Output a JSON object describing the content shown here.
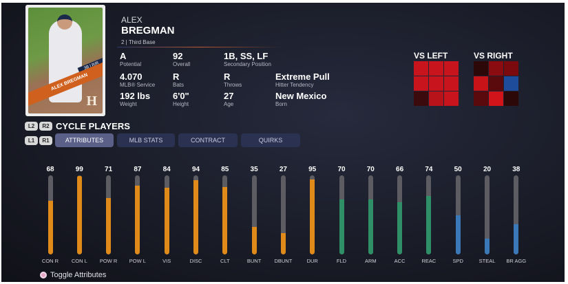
{
  "card": {
    "name": "ALEX BREGMAN",
    "position_badge": "3B | R/R",
    "logo": "H"
  },
  "player": {
    "first_name": "ALEX",
    "last_name": "BREGMAN",
    "subtitle": "2 | Third Base"
  },
  "info": [
    {
      "value": "A",
      "label": "Potential"
    },
    {
      "value": "92",
      "label": "Overall"
    },
    {
      "value": "1B, SS, LF",
      "label": "Secondary Position"
    },
    {
      "value": "4.070",
      "label": "MLB® Service"
    },
    {
      "value": "R",
      "label": "Bats"
    },
    {
      "value": "R",
      "label": "Throws"
    },
    {
      "value": "Extreme Pull",
      "label": "Hitter Tendency"
    },
    {
      "value": "192 lbs",
      "label": "Weight"
    },
    {
      "value": "6'0\"",
      "label": "Height"
    },
    {
      "value": "27",
      "label": "Age"
    },
    {
      "value": "New Mexico",
      "label": "Born"
    }
  ],
  "hot_zones": {
    "vs_left": {
      "title": "VS LEFT",
      "colors": [
        "#c8141c",
        "#c8141c",
        "#c8141c",
        "#c8141c",
        "#c8141c",
        "#c8141c",
        "#3a0a0c",
        "#b8121a",
        "#c8141c"
      ]
    },
    "vs_right": {
      "title": "VS RIGHT",
      "colors": [
        "#2c0809",
        "#8a0c10",
        "#7a0a0e",
        "#c81418",
        "#5a0a0c",
        "#1f4c9a",
        "#5a0a0c",
        "#d0141a",
        "#2c0809"
      ]
    }
  },
  "cycle": {
    "l2": "L2",
    "r2": "R2",
    "label": "CYCLE PLAYERS",
    "l1": "L1",
    "r1": "R1"
  },
  "tabs": [
    {
      "label": "ATTRIBUTES",
      "active": true
    },
    {
      "label": "MLB STATS"
    },
    {
      "label": "CONTRACT"
    },
    {
      "label": "QUIRKS"
    }
  ],
  "attribute_colors": {
    "hitting": "#e08a1a",
    "fielding": "#2f8f66",
    "running": "#3a78b8",
    "track": "#5c5c62"
  },
  "attributes": [
    {
      "label": "CON R",
      "value": 68,
      "group": "hitting"
    },
    {
      "label": "CON L",
      "value": 99,
      "group": "hitting"
    },
    {
      "label": "POW R",
      "value": 71,
      "group": "hitting"
    },
    {
      "label": "POW L",
      "value": 87,
      "group": "hitting"
    },
    {
      "label": "VIS",
      "value": 84,
      "group": "hitting"
    },
    {
      "label": "DISC",
      "value": 94,
      "group": "hitting"
    },
    {
      "label": "CLT",
      "value": 85,
      "group": "hitting"
    },
    {
      "label": "BUNT",
      "value": 35,
      "group": "hitting"
    },
    {
      "label": "DBUNT",
      "value": 27,
      "group": "hitting"
    },
    {
      "label": "DUR",
      "value": 95,
      "group": "hitting"
    },
    {
      "label": "FLD",
      "value": 70,
      "group": "fielding"
    },
    {
      "label": "ARM",
      "value": 70,
      "group": "fielding"
    },
    {
      "label": "ACC",
      "value": 66,
      "group": "fielding"
    },
    {
      "label": "REAC",
      "value": 74,
      "group": "fielding"
    },
    {
      "label": "SPD",
      "value": 50,
      "group": "running"
    },
    {
      "label": "STEAL",
      "value": 20,
      "group": "running"
    },
    {
      "label": "BR AGG",
      "value": 38,
      "group": "running"
    }
  ],
  "toggle": {
    "label": "Toggle Attributes"
  }
}
